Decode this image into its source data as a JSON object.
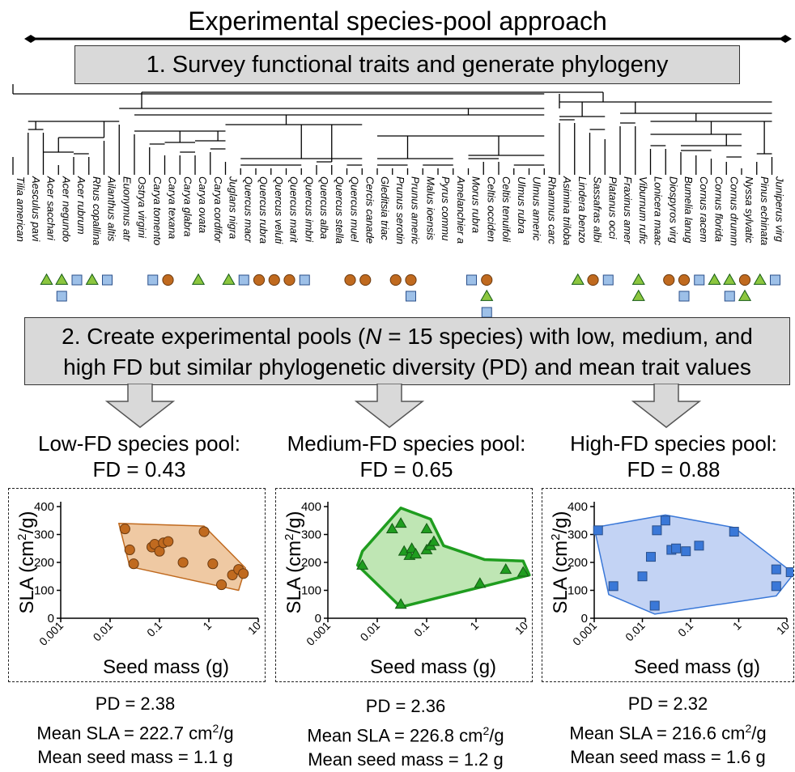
{
  "title": "Experimental species-pool approach",
  "step1": "1. Survey functional traits and generate phylogeny",
  "step2": {
    "line1_a": "2. Create experimental pools (",
    "line1_n": "N",
    "line1_b": " = 15 species) with low, medium, and",
    "line2": "high FD but similar phylogenetic diversity (PD) and mean trait values"
  },
  "species": [
    "Tilia american",
    "Aesculus pavi",
    "Acer sacchari",
    "Acer negundo",
    "Acer rubrum",
    "Rhus copallina",
    "Ailanthus altis",
    "Euonymus atr",
    "Ostrya virgini",
    "Carya tomento",
    "Carya texana",
    "Carya glabra",
    "Carya ovata",
    "Carya cordifor",
    "Juglans nigra",
    "Quercus macr",
    "Quercus rubra",
    "Quercus veluti",
    "Quercus marit",
    "Quercus imbri",
    "Quercus alba",
    "Quercus stella",
    "Quercus muel",
    "Cercis canade",
    "Gleditsia triac",
    "Prunus serotin",
    "Prunus americ",
    "Malus ioensis",
    "Pyrus commu",
    "Amelanchier a",
    "Morus rubra",
    "Celtis occiden",
    "Celtis tenuifoli",
    "Ulmus rubra",
    "Ulmus americ",
    "Rhamnus carc",
    "Asimina triloba",
    "Lindera benzo",
    "Sassafras albi",
    "Platanus occi",
    "Fraxinus amer",
    "Viburnum rufic",
    "Lonicera maac",
    "Diospyros virg",
    "Bumelia lanug",
    "Cornus racem",
    "Cornus florida",
    "Cornus drumm",
    "Nyssa sylvatic",
    "Pinus echinata",
    "Juniperus virg"
  ],
  "pools": [
    {
      "heading": "Low-FD species pool:",
      "fd": "FD = 0.43",
      "color": "#c06a1f",
      "fill": "#efc9a3",
      "marker": "circle",
      "pd": "PD = 2.38",
      "mean_sla_label": "Mean SLA = ",
      "mean_sla_value": "222.7 cm",
      "mean_sla_unit_sup": "2",
      "mean_sla_unit_rest": "/g",
      "mean_seed": "Mean seed mass = 1.1 g"
    },
    {
      "heading": "Medium-FD species pool:",
      "fd": "FD = 0.65",
      "color": "#1f9d1f",
      "fill": "#bfe6b4",
      "marker": "triangle",
      "pd": "PD = 2.36",
      "mean_sla_label": "Mean SLA = ",
      "mean_sla_value": "226.8 cm",
      "mean_sla_unit_sup": "2",
      "mean_sla_unit_rest": "/g",
      "mean_seed": "Mean seed mass = 1.2 g"
    },
    {
      "heading": "High-FD species pool:",
      "fd": "FD = 0.88",
      "color": "#3a78d8",
      "fill": "#c3d3f4",
      "marker": "square",
      "pd": "PD = 2.32",
      "mean_sla_label": "Mean SLA = ",
      "mean_sla_value": "216.6 cm",
      "mean_sla_unit_sup": "2",
      "mean_sla_unit_rest": "/g",
      "mean_seed": "Mean seed mass = 1.6 g"
    }
  ],
  "chart_data": [
    {
      "type": "scatter",
      "xlabel": "Seed mass (g)",
      "ylabel_a": "SLA (cm",
      "ylabel_sup": "2",
      "ylabel_b": "/g)",
      "xscale": "log",
      "xlim": [
        0.001,
        10
      ],
      "ylim": [
        0,
        400
      ],
      "xticks": [
        "0.001",
        "0.01",
        "0.1",
        "1",
        "10"
      ],
      "yticks": [
        "0",
        "100",
        "200",
        "300",
        "400"
      ],
      "points": [
        [
          0.02,
          320
        ],
        [
          0.025,
          245
        ],
        [
          0.03,
          195
        ],
        [
          0.07,
          255
        ],
        [
          0.08,
          265
        ],
        [
          0.1,
          240
        ],
        [
          0.12,
          270
        ],
        [
          0.15,
          275
        ],
        [
          0.3,
          200
        ],
        [
          0.8,
          310
        ],
        [
          1.2,
          195
        ],
        [
          1.8,
          120
        ],
        [
          3,
          155
        ],
        [
          4,
          175
        ],
        [
          5,
          160
        ]
      ],
      "hull": [
        [
          0.015,
          340
        ],
        [
          0.8,
          330
        ],
        [
          5.5,
          180
        ],
        [
          4,
          100
        ],
        [
          0.025,
          185
        ]
      ]
    },
    {
      "type": "scatter",
      "xlabel": "Seed mass (g)",
      "ylabel_a": "SLA (cm",
      "ylabel_sup": "2",
      "ylabel_b": "/g)",
      "xscale": "log",
      "xlim": [
        0.001,
        10
      ],
      "ylim": [
        0,
        400
      ],
      "xticks": [
        "0.001",
        "0.01",
        "0.1",
        "1",
        "10"
      ],
      "yticks": [
        "0",
        "100",
        "200",
        "300",
        "400"
      ],
      "points": [
        [
          0.005,
          190
        ],
        [
          0.02,
          320
        ],
        [
          0.03,
          340
        ],
        [
          0.035,
          240
        ],
        [
          0.045,
          225
        ],
        [
          0.05,
          250
        ],
        [
          0.06,
          230
        ],
        [
          0.1,
          245
        ],
        [
          0.12,
          260
        ],
        [
          0.14,
          275
        ],
        [
          0.1,
          320
        ],
        [
          0.03,
          50
        ],
        [
          1.2,
          125
        ],
        [
          4,
          175
        ],
        [
          9,
          165
        ]
      ],
      "hull": [
        [
          0.005,
          240
        ],
        [
          0.03,
          395
        ],
        [
          0.12,
          355
        ],
        [
          0.22,
          260
        ],
        [
          1.5,
          210
        ],
        [
          9,
          205
        ],
        [
          12,
          155
        ],
        [
          0.03,
          40
        ],
        [
          0.004,
          190
        ]
      ]
    },
    {
      "type": "scatter",
      "xlabel": "Seed mass (g)",
      "ylabel_a": "SLA (cm",
      "ylabel_sup": "2",
      "ylabel_b": "/g)",
      "xscale": "log",
      "xlim": [
        0.001,
        10
      ],
      "ylim": [
        0,
        400
      ],
      "xticks": [
        "0.001",
        "0.01",
        "0.1",
        "1",
        "10"
      ],
      "yticks": [
        "0",
        "100",
        "200",
        "300",
        "400"
      ],
      "points": [
        [
          0.0012,
          315
        ],
        [
          0.0025,
          115
        ],
        [
          0.01,
          150
        ],
        [
          0.015,
          220
        ],
        [
          0.018,
          45
        ],
        [
          0.02,
          315
        ],
        [
          0.03,
          350
        ],
        [
          0.04,
          245
        ],
        [
          0.05,
          250
        ],
        [
          0.08,
          240
        ],
        [
          0.15,
          260
        ],
        [
          0.8,
          310
        ],
        [
          6,
          175
        ],
        [
          6,
          115
        ],
        [
          12,
          165
        ]
      ],
      "hull": [
        [
          0.001,
          325
        ],
        [
          0.03,
          370
        ],
        [
          0.8,
          325
        ],
        [
          14,
          160
        ],
        [
          6,
          80
        ],
        [
          0.018,
          15
        ],
        [
          0.002,
          85
        ]
      ]
    }
  ]
}
